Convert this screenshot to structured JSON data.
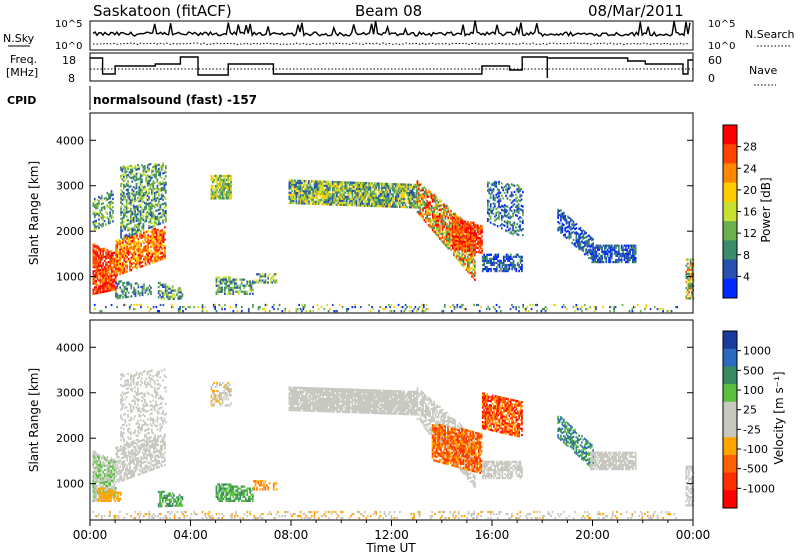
{
  "header": {
    "station": "Saskatoon (fitACF)",
    "beam": "Beam 08",
    "date": "08/Mar/2011"
  },
  "nsky_panel": {
    "left_label": "N.Sky",
    "left_ticks": [
      "10^5",
      "10^0"
    ],
    "right_label": "N.Search",
    "right_ticks": [
      "10^5",
      "10^0"
    ]
  },
  "freq_panel": {
    "left_label_line1": "Freq.",
    "left_label_line2": "[MHz]",
    "left_ticks": [
      "18",
      "8"
    ],
    "right_label": "Nave",
    "right_ticks": [
      "60",
      "0"
    ]
  },
  "cpid": {
    "label": "CPID",
    "value": "normalsound (fast) -157"
  },
  "chart_data": [
    {
      "type": "heatmap",
      "name": "power",
      "ylabel": "Slant Range [km]",
      "y_ticks": [
        1000,
        2000,
        3000,
        4000
      ],
      "ylim": [
        200,
        4600
      ],
      "colorbar": {
        "label": "Power [dB]",
        "ticks": [
          "28",
          "24",
          "20",
          "16",
          "12",
          "8",
          "4"
        ],
        "colors": [
          "#ff0000",
          "#ff4400",
          "#ff8800",
          "#ffcc00",
          "#c8e030",
          "#6ab04c",
          "#3c8c6c",
          "#2850b0",
          "#0028ff"
        ]
      }
    },
    {
      "type": "heatmap",
      "name": "velocity",
      "ylabel": "Slant Range [km]",
      "y_ticks": [
        1000,
        2000,
        3000,
        4000
      ],
      "ylim": [
        200,
        4600
      ],
      "colorbar": {
        "label": "Velocity [m s⁻¹]",
        "ticks": [
          "1000",
          "500",
          "100",
          "25",
          "-25",
          "-100",
          "-500",
          "-1000"
        ],
        "colors": [
          "#1a3a9e",
          "#2a6ac0",
          "#3a8c60",
          "#5ac040",
          "#c8c8c0",
          "#c8c8c0",
          "#ffa500",
          "#ff6000",
          "#ff3000",
          "#ff0000"
        ]
      }
    }
  ],
  "time_axis": {
    "label": "Time UT",
    "ticks": [
      "00:00",
      "04:00",
      "08:00",
      "12:00",
      "16:00",
      "20:00",
      "00:00"
    ]
  }
}
